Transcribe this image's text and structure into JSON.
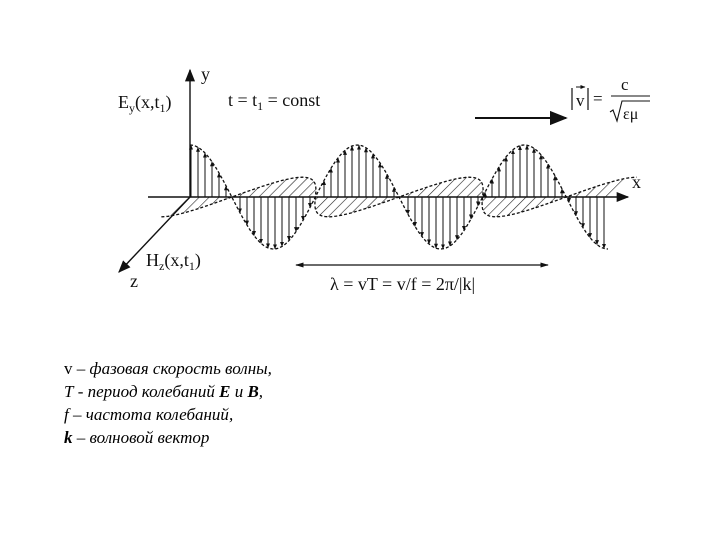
{
  "diagram": {
    "axes": {
      "y": "y",
      "x": "x",
      "z": "z"
    },
    "labels": {
      "e_field": "E",
      "e_field_sub": "y",
      "e_field_args": "(x,t",
      "e_field_args_sub": "1",
      "e_field_close": ")",
      "h_field": "H",
      "h_field_sub": "z",
      "h_field_args": "(x,t",
      "h_field_args_sub": "1",
      "h_field_close": ")",
      "time_condition": "t = t",
      "time_condition_sub": "1",
      "time_condition_rest": " = const",
      "velocity_lhs": "v",
      "velocity_eq": "=",
      "velocity_num": "c",
      "velocity_den": "εμ",
      "wavelength_formula": "λ = vT = v/f  = 2π/|k|"
    },
    "colors": {
      "ink": "#111111",
      "background": "#ffffff"
    }
  },
  "legend": [
    {
      "symbol": "v",
      "symbol_style": "plain",
      "sep": " – ",
      "text": "фазовая скорость волны",
      "tail": ","
    },
    {
      "symbol": "T",
      "symbol_style": "italic",
      "sep": " - ",
      "text": "период колебаний ",
      "bold1": "E",
      "mid": " и ",
      "bold2": "B",
      "tail": ","
    },
    {
      "symbol": "f",
      "symbol_style": "italic",
      "sep": " – ",
      "text": "частота колебаний",
      "tail": ","
    },
    {
      "symbol": "k",
      "symbol_style": "bold-italic",
      "sep": " – ",
      "text": "волновой вектор",
      "tail": ""
    }
  ]
}
